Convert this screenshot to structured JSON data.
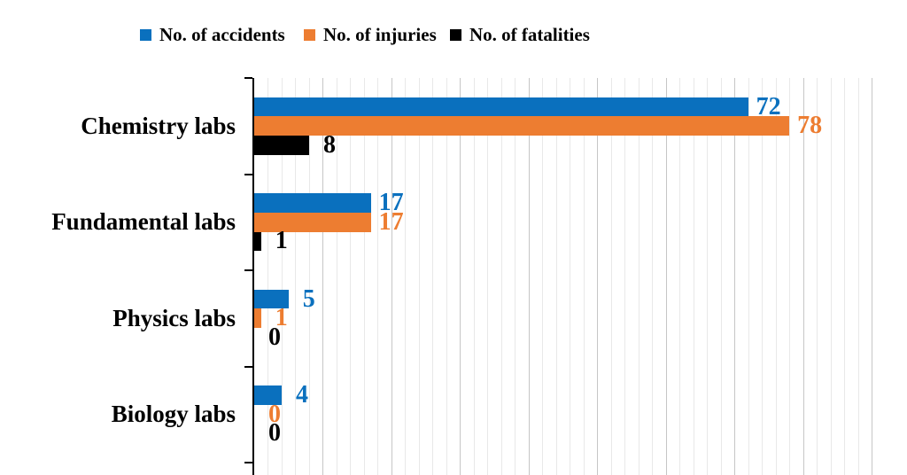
{
  "chart_data": {
    "type": "bar",
    "orientation": "horizontal",
    "title": "",
    "categories": [
      "Chemistry labs",
      "Fundamental labs",
      "Physics labs",
      "Biology labs"
    ],
    "series": [
      {
        "name": "No. of accidents",
        "color": "#0A70BE",
        "values": [
          72,
          17,
          5,
          4
        ]
      },
      {
        "name": "No. of injuries",
        "color": "#ED7D31",
        "values": [
          78,
          17,
          1,
          0
        ]
      },
      {
        "name": "No. of fatalities",
        "color": "#000000",
        "values": [
          8,
          1,
          0,
          0
        ]
      }
    ],
    "xlim": [
      0,
      90
    ],
    "x_minor_unit": 2,
    "x_major_unit": 10,
    "grid": "vertical minor and major gridlines, x-axis tick labels cut off below image",
    "legend_position": "top",
    "value_labels": "outside end of each bar, colored to match its series"
  },
  "colors": {
    "background": "#FFFFFF",
    "axis": "#000000",
    "grid_minor": "#E8E8E8",
    "grid_major": "#C6C6C6"
  }
}
